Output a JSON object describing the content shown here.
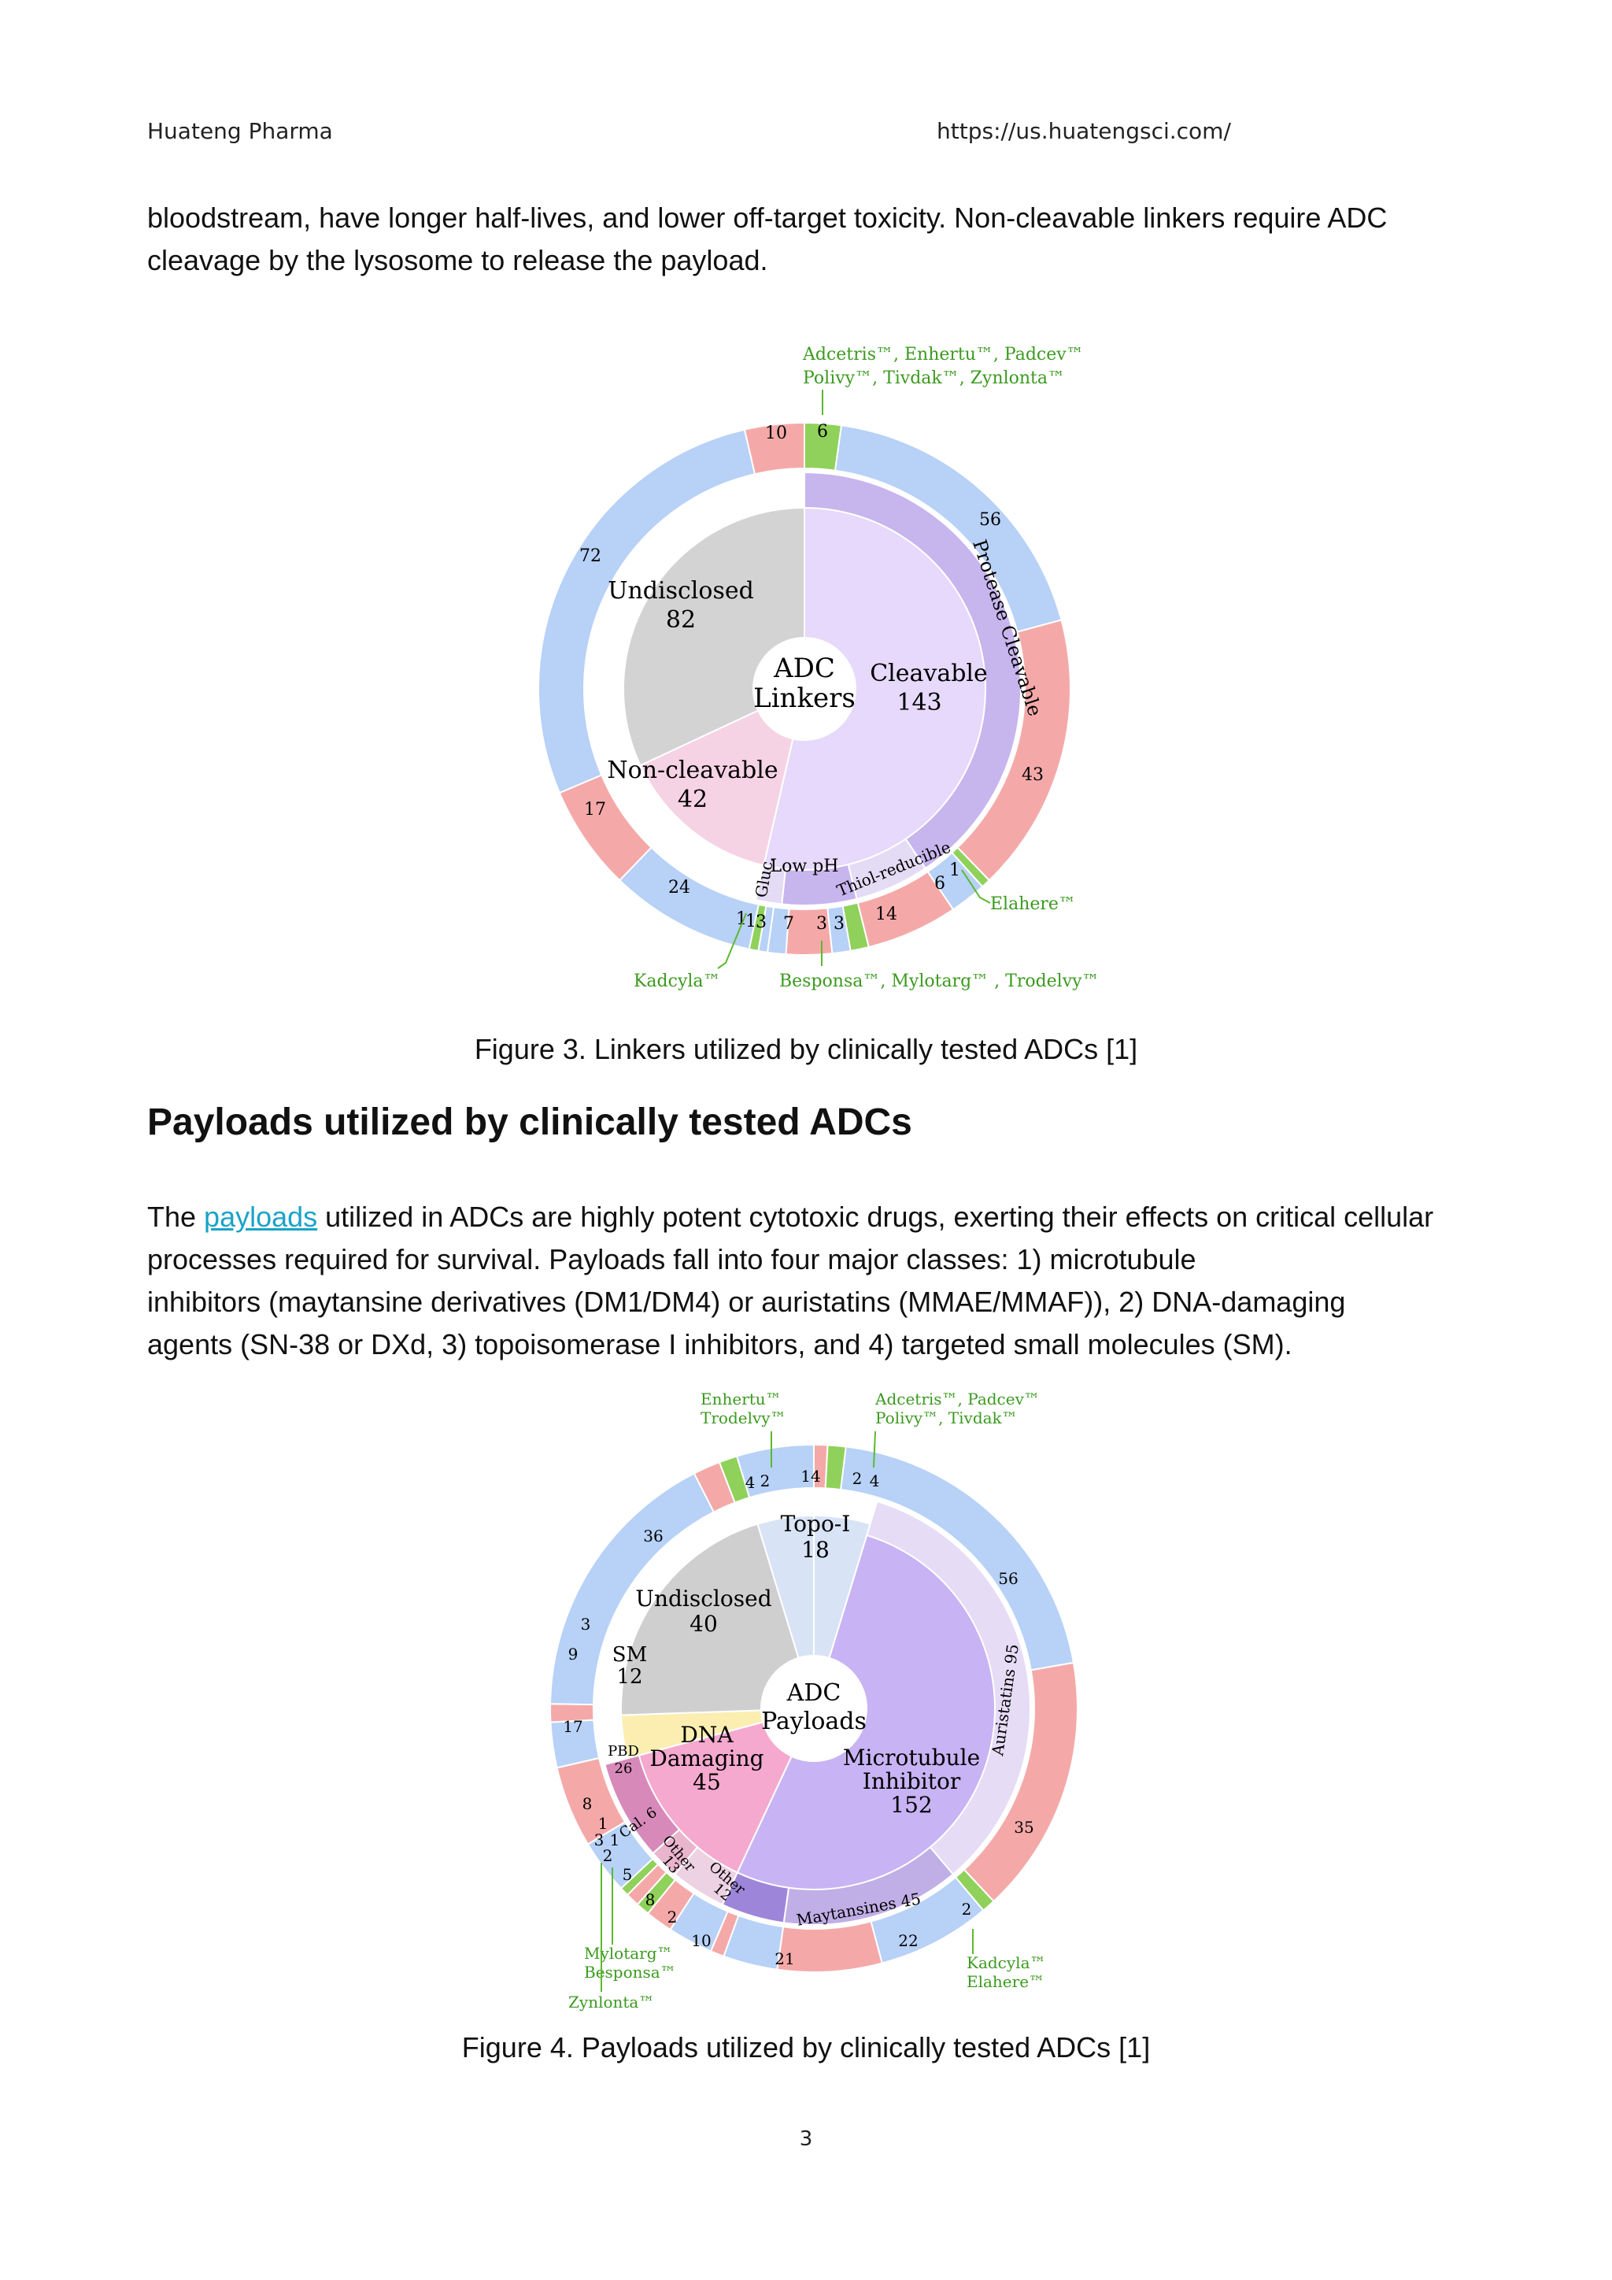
{
  "header": {
    "left": "Huateng Pharma",
    "right": "https://us.huatengsci.com/"
  },
  "intro": {
    "line1": "bloodstream, have longer half-lives, and lower off-target toxicity. Non-cleavable linkers require ADC",
    "line2": "cleavage by the lysosome to release the payload."
  },
  "figure3": {
    "caption": "Figure 3. Linkers utilized by clinically tested ADCs [1]",
    "center": [
      "ADC",
      "Linkers"
    ],
    "inner": [
      {
        "name": "Cleavable",
        "value": 143
      },
      {
        "name": "Non-cleavable",
        "value": 42
      },
      {
        "name": "Undisclosed",
        "value": 82
      }
    ],
    "middle": [
      {
        "name": "Protease Cleavable"
      },
      {
        "name": "Thiol-reducible"
      },
      {
        "name": "Low pH"
      },
      {
        "name": "Gluc."
      }
    ],
    "outer_labels": [
      "6",
      "56",
      "43",
      "1",
      "6",
      "14",
      "3",
      "3",
      "7",
      "3",
      "1",
      "1",
      "24",
      "17",
      "72",
      "10"
    ],
    "annotations": {
      "top_line1": "Adcetris™, Enhertu™, Padcev™",
      "top_line2": "Polivy™, Tivdak™, Zynlonta™",
      "right": "Elahere™",
      "bottom_left": "Kadcyla™",
      "bottom": "Besponsa™, Mylotarg™ , Trodelvy™"
    }
  },
  "section": {
    "heading": "Payloads utilized by clinically tested ADCs",
    "p_pre": "The ",
    "p_link": "payloads",
    "p_post": " utilized in ADCs are highly potent cytotoxic drugs, exerting their effects on critical cellular",
    "line2": "processes required for survival. Payloads fall into four major classes: 1) microtubule",
    "line3": "inhibitors (maytansine derivatives (DM1/DM4) or auristatins (MMAE/MMAF)), 2) DNA-damaging",
    "line4": "agents (SN-38 or DXd, 3) topoisomerase I inhibitors, and 4) targeted small molecules (SM)."
  },
  "figure4": {
    "caption": "Figure 4. Payloads utilized by clinically tested ADCs [1]",
    "center": [
      "ADC",
      "Payloads"
    ],
    "inner": [
      {
        "name": "Topo-I",
        "value": 18
      },
      {
        "name": "Microtubule Inhibitor",
        "lines": [
          "Microtubule",
          "Inhibitor"
        ],
        "value": 152
      },
      {
        "name": "DNA Damaging",
        "lines": [
          "DNA",
          "Damaging"
        ],
        "value": 45
      },
      {
        "name": "SM",
        "value": 12
      },
      {
        "name": "Undisclosed",
        "value": 40
      }
    ],
    "middle": [
      {
        "name": "Auristatins 95"
      },
      {
        "name": "Maytansines 45"
      },
      {
        "name": "Other",
        "value": "12"
      },
      {
        "name": "Other",
        "value": "13"
      },
      {
        "name": "Cal. 6"
      },
      {
        "name": "PBD",
        "value": "26"
      }
    ],
    "outer_labels": [
      "14",
      "2",
      "4",
      "56",
      "35",
      "2",
      "22",
      "21",
      "10",
      "2",
      "8",
      "5",
      "2",
      "3",
      "1",
      "1",
      "8",
      "17",
      "9",
      "3",
      "36",
      "4",
      "2"
    ],
    "annotations": {
      "top_left_1": "Enhertu™",
      "top_left_2": "Trodelvy™",
      "top_right_1": "Adcetris™, Padcev™",
      "top_right_2": "Polivy™, Tivdak™",
      "right_1": "Kadcyla™",
      "right_2": "Elahere™",
      "left_1": "Mylotarg™",
      "left_2": "Besponsa™",
      "left_3": "Zynlonta™"
    }
  },
  "page_number": "3"
}
